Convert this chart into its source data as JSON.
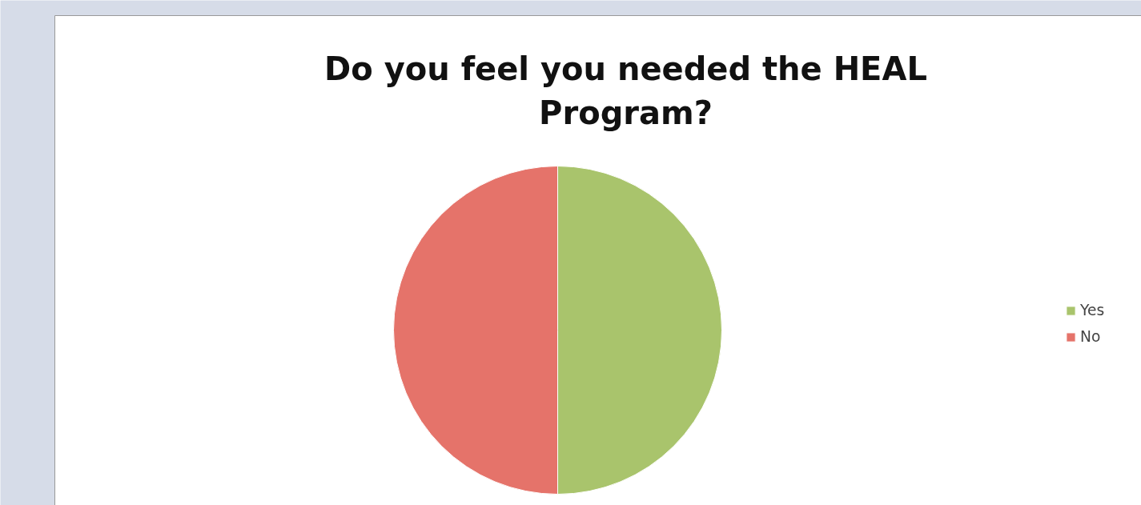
{
  "chart_data": {
    "type": "pie",
    "title": "Do you feel you needed the HEAL Program?",
    "categories": [
      "Yes",
      "No"
    ],
    "values": [
      50,
      50
    ],
    "colors": [
      "#a9c46c",
      "#e5736a"
    ],
    "legend": "right"
  }
}
